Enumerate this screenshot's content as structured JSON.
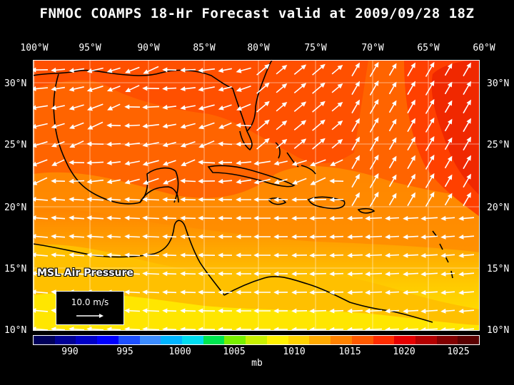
{
  "title": "FNMOC COAMPS 18-Hr Forecast valid at 2009/09/28 18Z",
  "lon_labels": [
    "100°W",
    "95°W",
    "90°W",
    "85°W",
    "80°W",
    "75°W",
    "70°W",
    "65°W",
    "60°W"
  ],
  "lat_labels": [
    "30°N",
    "25°N",
    "20°N",
    "15°N",
    "10°N"
  ],
  "field_label": "MSL Air Pressure",
  "wind_key": "10.0 m/s",
  "colorbar": {
    "ticks": [
      "990",
      "995",
      "1000",
      "1005",
      "1010",
      "1015",
      "1020",
      "1025"
    ],
    "unit": "mb",
    "colors": [
      "#00005a",
      "#000096",
      "#0000c8",
      "#0000ff",
      "#1e50ff",
      "#3c8cff",
      "#00b4ff",
      "#00dcf0",
      "#00e650",
      "#78f000",
      "#c8f000",
      "#fff000",
      "#ffd200",
      "#ffaa00",
      "#ff8200",
      "#ff5a00",
      "#ff2d00",
      "#e60000",
      "#b40000",
      "#820000",
      "#5a0000"
    ]
  },
  "colors": {
    "p1004": "#ffe600",
    "p1008": "#ffc800",
    "p1012": "#ff9600",
    "p1014": "#ff6e00",
    "p1018": "#f02800",
    "background": "#000000"
  }
}
